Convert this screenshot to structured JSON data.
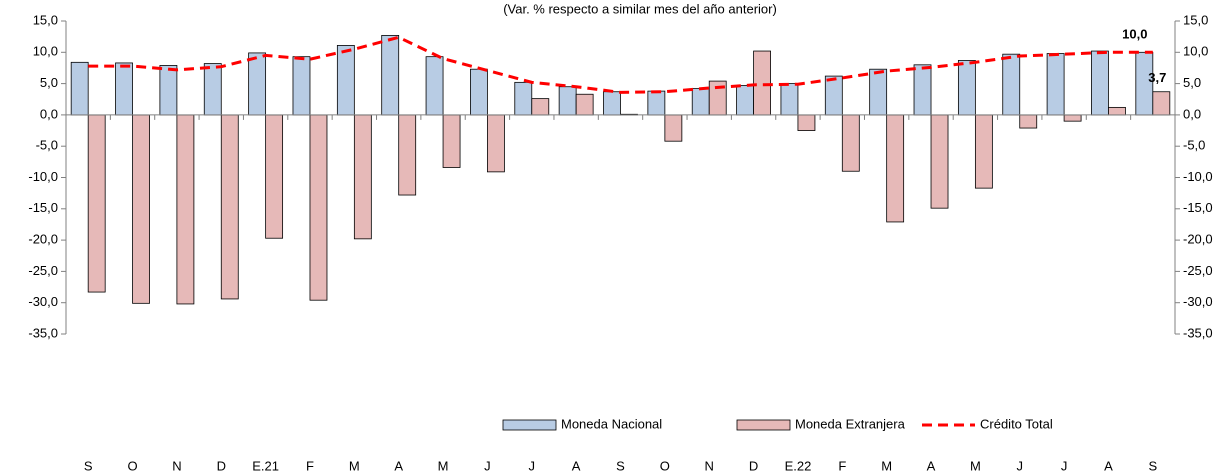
{
  "chart_data": {
    "type": "bar",
    "subtitle": "(Var. % respecto a similar mes del año anterior)",
    "categories": [
      "S",
      "O",
      "N",
      "D",
      "E.21",
      "F",
      "M",
      "A",
      "M",
      "J",
      "J",
      "A",
      "S",
      "O",
      "N",
      "D",
      "E.22",
      "F",
      "M",
      "A",
      "M",
      "J",
      "J",
      "A",
      "S"
    ],
    "series": [
      {
        "name": "Moneda Nacional",
        "type": "bar",
        "color": "#b8cce4",
        "values": [
          8.4,
          8.3,
          7.9,
          8.2,
          9.9,
          9.3,
          11.1,
          12.7,
          9.3,
          7.3,
          5.2,
          4.5,
          3.7,
          3.8,
          4.2,
          4.7,
          5.0,
          6.2,
          7.3,
          8.0,
          8.7,
          9.7,
          9.8,
          10.2,
          10.0
        ]
      },
      {
        "name": "Moneda Extranjera",
        "type": "bar",
        "color": "#e6b9b8",
        "values": [
          -28.3,
          -30.1,
          -30.2,
          -29.4,
          -19.7,
          -29.6,
          -19.8,
          -12.8,
          -8.4,
          -9.1,
          2.6,
          3.3,
          0.1,
          -4.2,
          5.4,
          10.2,
          -2.5,
          -9.0,
          -17.1,
          -14.9,
          -11.7,
          -2.1,
          -1.0,
          1.2,
          3.7
        ],
        "value_labels": [
          null,
          null,
          null,
          null,
          null,
          null,
          null,
          null,
          null,
          null,
          null,
          null,
          null,
          null,
          null,
          null,
          null,
          null,
          null,
          null,
          null,
          null,
          null,
          null,
          "3,7"
        ]
      },
      {
        "name": "Crédito Total",
        "type": "line",
        "color": "#ff0000",
        "values": [
          7.8,
          7.8,
          7.2,
          7.7,
          9.5,
          8.9,
          10.5,
          12.4,
          9.0,
          7.1,
          5.2,
          4.5,
          3.6,
          3.7,
          4.3,
          4.8,
          4.9,
          5.9,
          7.0,
          7.6,
          8.4,
          9.4,
          9.7,
          10.0,
          10.0
        ],
        "value_labels": [
          null,
          null,
          null,
          null,
          null,
          null,
          null,
          null,
          null,
          null,
          null,
          null,
          null,
          null,
          null,
          null,
          null,
          null,
          null,
          null,
          null,
          null,
          null,
          null,
          "10,0"
        ]
      }
    ],
    "ylim": [
      -35,
      15
    ],
    "yticks": [
      {
        "value": 15,
        "label": "15,0"
      },
      {
        "value": 10,
        "label": "10,0"
      },
      {
        "value": 5,
        "label": "5,0"
      },
      {
        "value": 0,
        "label": "0,0"
      },
      {
        "value": -5,
        "label": "-5,0"
      },
      {
        "value": -10,
        "label": "-10,0"
      },
      {
        "value": -15,
        "label": "-15,0"
      },
      {
        "value": -20,
        "label": "-20,0"
      },
      {
        "value": -25,
        "label": "-25,0"
      },
      {
        "value": -30,
        "label": "-30,0"
      },
      {
        "value": -35,
        "label": "-35,0"
      }
    ],
    "y2lim": [
      -35,
      15
    ],
    "y2ticks": [
      {
        "value": 15,
        "label": "15,0"
      },
      {
        "value": 10,
        "label": "10,0"
      },
      {
        "value": 5,
        "label": "5,0"
      },
      {
        "value": 0,
        "label": "0,0"
      },
      {
        "value": -5,
        "label": "-5,0"
      },
      {
        "value": -10,
        "label": "-10,0"
      },
      {
        "value": -15,
        "label": "-15,0"
      },
      {
        "value": -20,
        "label": "-20,0"
      },
      {
        "value": -25,
        "label": "-25,0"
      },
      {
        "value": -30,
        "label": "-30,0"
      },
      {
        "value": -35,
        "label": "-35,0"
      }
    ],
    "grid": false,
    "legend": "lower right"
  }
}
